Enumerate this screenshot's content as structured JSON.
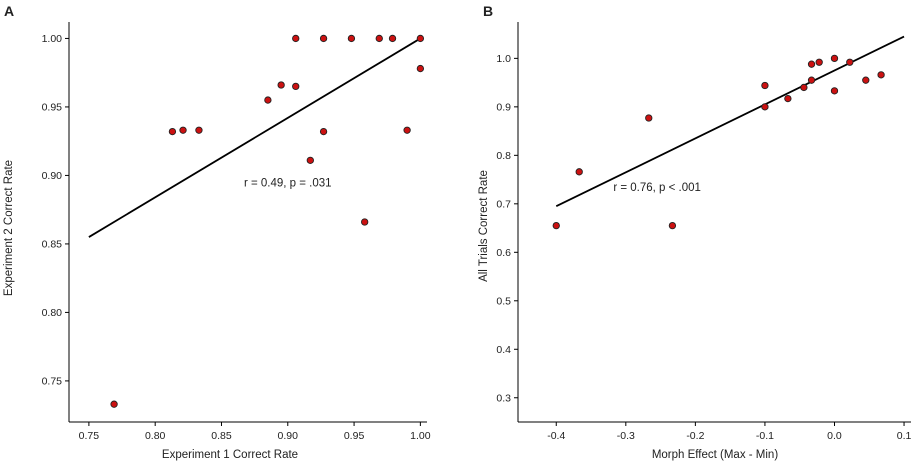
{
  "chart_data": [
    {
      "type": "scatter",
      "panel_label": "A",
      "title": "",
      "xlabel": "Experiment 1 Correct Rate",
      "ylabel": "Experiment 2 Correct Rate",
      "xlim": [
        0.735,
        1.005
      ],
      "ylim": [
        0.72,
        1.012
      ],
      "xticks": [
        0.75,
        0.8,
        0.85,
        0.9,
        0.95,
        1.0
      ],
      "xtick_labels": [
        "0.75",
        "0.80",
        "0.85",
        "0.90",
        "0.95",
        "1.00"
      ],
      "yticks": [
        0.75,
        0.8,
        0.85,
        0.9,
        0.95,
        1.0
      ],
      "ytick_labels": [
        "0.75",
        "0.80",
        "0.85",
        "0.90",
        "0.95",
        "1.00"
      ],
      "grid": false,
      "annotation": "r = 0.49, p = .031",
      "annotation_at": [
        0.9,
        0.895
      ],
      "marker_color": "#cc1111",
      "fit_line": {
        "x": [
          0.75,
          1.0
        ],
        "y": [
          0.855,
          1.0
        ]
      },
      "points": [
        {
          "x": 0.769,
          "y": 0.733
        },
        {
          "x": 0.813,
          "y": 0.932
        },
        {
          "x": 0.821,
          "y": 0.933
        },
        {
          "x": 0.833,
          "y": 0.933
        },
        {
          "x": 0.885,
          "y": 0.955
        },
        {
          "x": 0.895,
          "y": 0.966
        },
        {
          "x": 0.906,
          "y": 1.0
        },
        {
          "x": 0.906,
          "y": 0.965
        },
        {
          "x": 0.917,
          "y": 0.911
        },
        {
          "x": 0.927,
          "y": 1.0
        },
        {
          "x": 0.927,
          "y": 0.932
        },
        {
          "x": 0.948,
          "y": 1.0
        },
        {
          "x": 0.958,
          "y": 0.866
        },
        {
          "x": 0.969,
          "y": 1.0
        },
        {
          "x": 0.979,
          "y": 1.0
        },
        {
          "x": 0.99,
          "y": 0.933
        },
        {
          "x": 1.0,
          "y": 1.0
        },
        {
          "x": 1.0,
          "y": 0.978
        }
      ]
    },
    {
      "type": "scatter",
      "panel_label": "B",
      "title": "",
      "xlabel": "Morph Effect (Max - Min)",
      "ylabel": "All Trials Correct Rate",
      "xlim": [
        -0.455,
        0.11
      ],
      "ylim": [
        0.25,
        1.075
      ],
      "xticks": [
        -0.4,
        -0.3,
        -0.2,
        -0.1,
        0.0,
        0.1
      ],
      "xtick_labels": [
        "-0.4",
        "-0.3",
        "-0.2",
        "-0.1",
        "0.0",
        "0.1"
      ],
      "yticks": [
        0.3,
        0.4,
        0.5,
        0.6,
        0.7,
        0.8,
        0.9,
        1.0
      ],
      "ytick_labels": [
        "0.3",
        "0.4",
        "0.5",
        "0.6",
        "0.7",
        "0.8",
        "0.9",
        "1.0"
      ],
      "grid": false,
      "annotation": "r = 0.76, p < .001",
      "annotation_at": [
        -0.255,
        0.735
      ],
      "marker_color": "#cc1111",
      "fit_line": {
        "x": [
          -0.4,
          0.1
        ],
        "y": [
          0.695,
          1.045
        ]
      },
      "points": [
        {
          "x": -0.4,
          "y": 0.655
        },
        {
          "x": -0.367,
          "y": 0.766
        },
        {
          "x": -0.267,
          "y": 0.877
        },
        {
          "x": -0.233,
          "y": 0.655
        },
        {
          "x": -0.1,
          "y": 0.944
        },
        {
          "x": -0.1,
          "y": 0.9
        },
        {
          "x": -0.067,
          "y": 0.917
        },
        {
          "x": -0.044,
          "y": 0.94
        },
        {
          "x": -0.033,
          "y": 0.988
        },
        {
          "x": -0.033,
          "y": 0.955
        },
        {
          "x": -0.022,
          "y": 0.992
        },
        {
          "x": 0.0,
          "y": 1.0
        },
        {
          "x": 0.0,
          "y": 0.933
        },
        {
          "x": 0.022,
          "y": 0.992
        },
        {
          "x": 0.045,
          "y": 0.955
        },
        {
          "x": 0.067,
          "y": 0.966
        }
      ]
    }
  ]
}
